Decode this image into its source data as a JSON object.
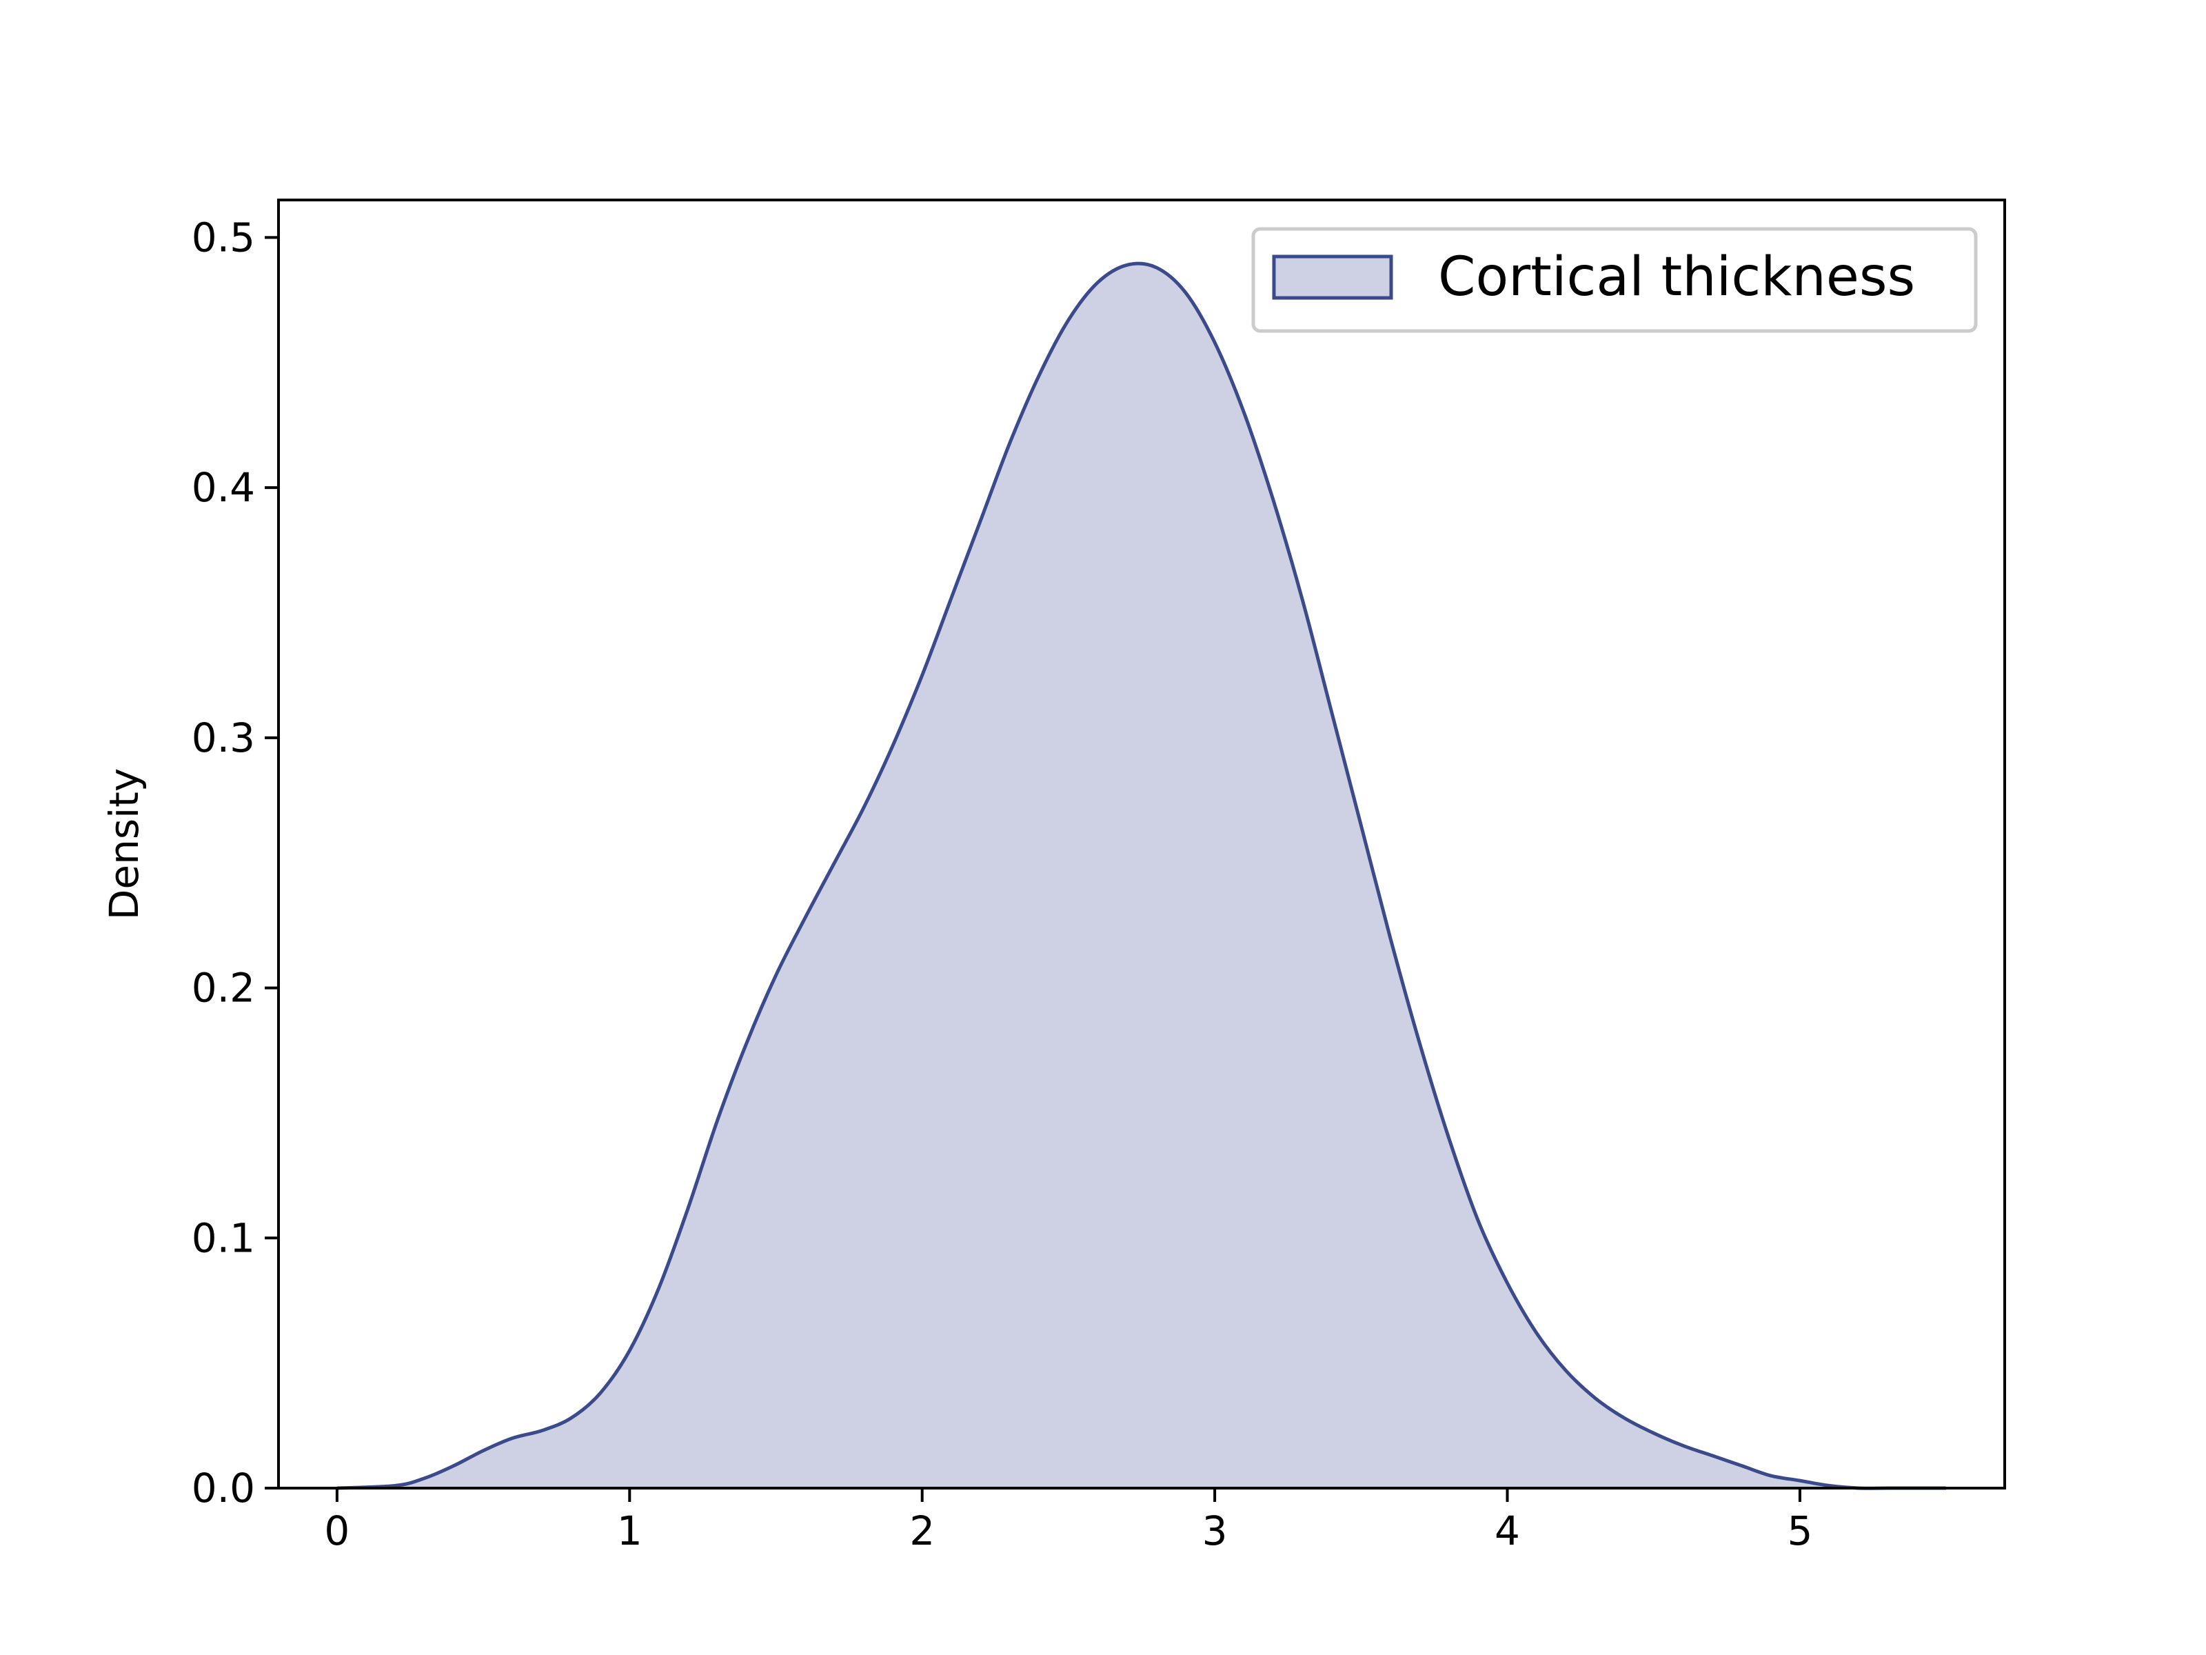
{
  "chart_data": {
    "type": "area",
    "title": "",
    "xlabel": "",
    "ylabel": "Density",
    "xlim": [
      -0.2,
      5.7
    ],
    "ylim": [
      0,
      0.515
    ],
    "xticks": [
      0,
      1,
      2,
      3,
      4,
      5
    ],
    "yticks": [
      0.0,
      0.1,
      0.2,
      0.3,
      0.4,
      0.5
    ],
    "xtick_labels": [
      "0",
      "1",
      "2",
      "3",
      "4",
      "5"
    ],
    "ytick_labels": [
      "0.0",
      "0.1",
      "0.2",
      "0.3",
      "0.4",
      "0.5"
    ],
    "grid": false,
    "legend_position": "top-right",
    "series": [
      {
        "name": "Cortical thickness",
        "color": "#3b4a8a",
        "fill_color": "#cdd1e3",
        "x": [
          0.0,
          0.2,
          0.3,
          0.4,
          0.5,
          0.6,
          0.7,
          0.8,
          0.9,
          1.0,
          1.1,
          1.2,
          1.3,
          1.4,
          1.5,
          1.6,
          1.7,
          1.8,
          1.9,
          2.0,
          2.1,
          2.2,
          2.3,
          2.4,
          2.5,
          2.6,
          2.7,
          2.8,
          2.9,
          3.0,
          3.1,
          3.2,
          3.3,
          3.4,
          3.5,
          3.6,
          3.7,
          3.8,
          3.9,
          4.0,
          4.1,
          4.2,
          4.3,
          4.4,
          4.5,
          4.6,
          4.7,
          4.8,
          4.9,
          5.0,
          5.1,
          5.2,
          5.3,
          5.4,
          5.5
        ],
        "y": [
          0.0,
          0.001,
          0.004,
          0.009,
          0.015,
          0.02,
          0.023,
          0.028,
          0.038,
          0.055,
          0.08,
          0.112,
          0.147,
          0.178,
          0.205,
          0.228,
          0.25,
          0.272,
          0.297,
          0.325,
          0.356,
          0.387,
          0.418,
          0.445,
          0.467,
          0.482,
          0.489,
          0.488,
          0.478,
          0.458,
          0.43,
          0.395,
          0.355,
          0.31,
          0.265,
          0.22,
          0.178,
          0.14,
          0.107,
          0.082,
          0.062,
          0.047,
          0.036,
          0.028,
          0.022,
          0.017,
          0.013,
          0.009,
          0.005,
          0.003,
          0.001,
          0.0,
          0.0,
          0.0,
          0.0
        ]
      }
    ]
  }
}
